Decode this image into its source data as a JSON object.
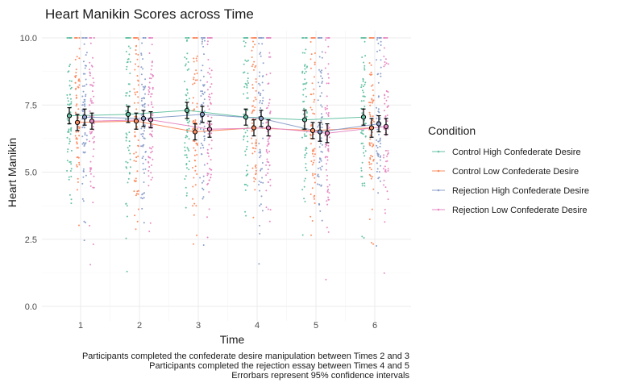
{
  "chart_data": {
    "type": "scatter",
    "title": "Heart Manikin Scores across Time",
    "xlabel": "Time",
    "ylabel": "Heart Manikin",
    "x_categories": [
      "1",
      "2",
      "3",
      "4",
      "5",
      "6"
    ],
    "ylim": [
      0,
      10
    ],
    "yticks": [
      "0.0",
      "2.5",
      "5.0",
      "7.5",
      "10.0"
    ],
    "grid": true,
    "legend": {
      "title": "Condition",
      "placement": "right"
    },
    "series": [
      {
        "name": "Control High Confederate Desire",
        "color": "#66c2a5",
        "means": [
          7.1,
          7.15,
          7.3,
          7.05,
          6.95,
          7.05
        ],
        "ci": [
          0.3,
          0.3,
          0.3,
          0.3,
          0.35,
          0.3
        ]
      },
      {
        "name": "Control Low Confederate Desire",
        "color": "#fc8d62",
        "means": [
          6.85,
          6.9,
          6.5,
          6.65,
          6.55,
          6.65
        ],
        "ci": [
          0.3,
          0.3,
          0.3,
          0.3,
          0.3,
          0.35
        ]
      },
      {
        "name": "Rejection High Confederate Desire",
        "color": "#8da0cb",
        "means": [
          7.05,
          7.0,
          7.15,
          7.0,
          6.5,
          6.8
        ],
        "ci": [
          0.3,
          0.3,
          0.3,
          0.3,
          0.35,
          0.3
        ]
      },
      {
        "name": "Rejection Low Confederate Desire",
        "color": "#e78ac3",
        "means": [
          6.9,
          6.95,
          6.6,
          6.65,
          6.45,
          6.7
        ],
        "ci": [
          0.3,
          0.3,
          0.3,
          0.3,
          0.35,
          0.3
        ]
      }
    ],
    "captions": [
      "Participants completed the confederate desire manipulation between Times 2 and 3",
      "Participants completed the rejection essay between Times 4 and 5",
      "Errorbars represent 95% confidence intervals"
    ]
  }
}
